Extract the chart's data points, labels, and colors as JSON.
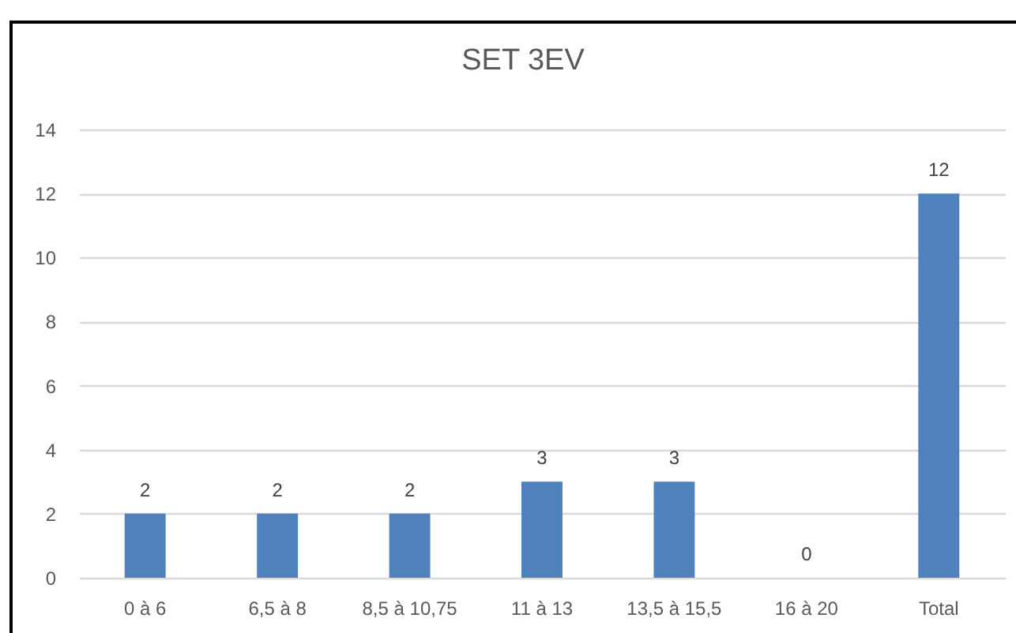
{
  "chart_data": {
    "type": "bar",
    "title": "SET 3EV",
    "categories": [
      "0 à 6",
      "6,5 à 8",
      "8,5 à 10,75",
      "11 à 13",
      "13,5 à 15,5",
      "16 à 20",
      "Total"
    ],
    "values": [
      2,
      2,
      2,
      3,
      3,
      0,
      12
    ],
    "color": "#4f81bd",
    "ylim": [
      0,
      14
    ],
    "yticks": [
      0,
      2,
      4,
      6,
      8,
      10,
      12,
      14
    ],
    "grid": "y",
    "data_labels": true
  }
}
